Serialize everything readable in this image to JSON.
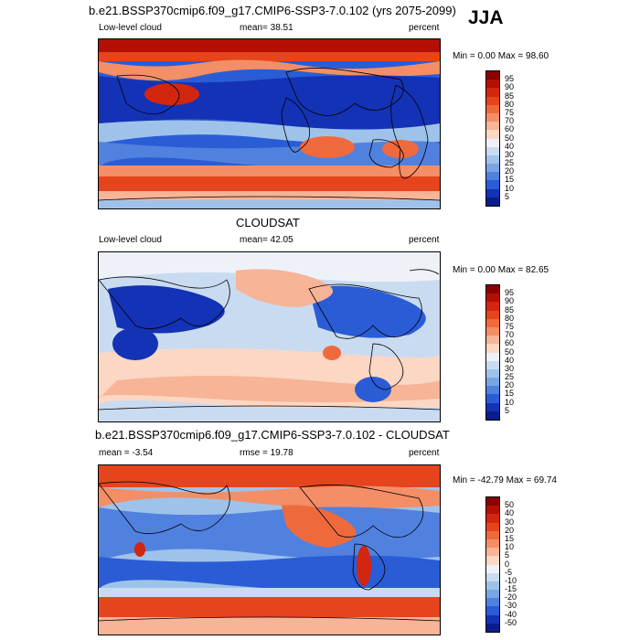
{
  "season": "JJA",
  "panels": [
    {
      "id": "model",
      "title": "b.e21.BSSP370cmip6.f09_g17.CMIP6-SSP3-7.0.102 (yrs 2075-2099)",
      "left_label": "Low-level cloud",
      "center_label": "mean=  38.51",
      "right_label": "percent",
      "minmax": "Min =   0.00 Max =  98.60",
      "colorbar": {
        "labels": [
          "95",
          "90",
          "85",
          "80",
          "75",
          "70",
          "60",
          "50",
          "40",
          "30",
          "25",
          "20",
          "15",
          "10",
          "5"
        ],
        "colors": [
          "#8b0000",
          "#b40f05",
          "#d3260e",
          "#e5441d",
          "#ee6a3d",
          "#f38e66",
          "#f7b496",
          "#fbd7c4",
          "#eef2f8",
          "#c9dbf0",
          "#9fc2ea",
          "#7aa5e3",
          "#5181df",
          "#2a5cd6",
          "#1432b5",
          "#0a1d8c"
        ]
      }
    },
    {
      "id": "obs",
      "title": "CLOUDSAT",
      "left_label": "Low-level cloud",
      "center_label": "mean=  42.05",
      "right_label": "percent",
      "minmax": "Min =   0.00 Max =  82.65",
      "colorbar": {
        "labels": [
          "95",
          "90",
          "85",
          "80",
          "75",
          "70",
          "60",
          "50",
          "40",
          "30",
          "25",
          "20",
          "15",
          "10",
          "5"
        ],
        "colors": [
          "#8b0000",
          "#b40f05",
          "#d3260e",
          "#e5441d",
          "#ee6a3d",
          "#f38e66",
          "#f7b496",
          "#fbd7c4",
          "#eef2f8",
          "#c9dbf0",
          "#9fc2ea",
          "#7aa5e3",
          "#5181df",
          "#2a5cd6",
          "#1432b5",
          "#0a1d8c"
        ]
      }
    },
    {
      "id": "diff",
      "title": "b.e21.BSSP370cmip6.f09_g17.CMIP6-SSP3-7.0.102 - CLOUDSAT",
      "left_label": "mean =  -3.54",
      "center_label": "rmse =  19.78",
      "right_label": "percent",
      "minmax": "Min = -42.79 Max =  69.74",
      "colorbar": {
        "labels": [
          "50",
          "40",
          "30",
          "20",
          "15",
          "10",
          "5",
          "0",
          "-5",
          "-10",
          "-15",
          "-20",
          "-30",
          "-40",
          "-50"
        ],
        "colors": [
          "#8b0000",
          "#b40f05",
          "#d3260e",
          "#e5441d",
          "#ee6a3d",
          "#f38e66",
          "#f7b496",
          "#fbd7c4",
          "#eef2f8",
          "#c9dbf0",
          "#9fc2ea",
          "#7aa5e3",
          "#5181df",
          "#2a5cd6",
          "#1432b5",
          "#0a1d8c"
        ]
      }
    }
  ]
}
